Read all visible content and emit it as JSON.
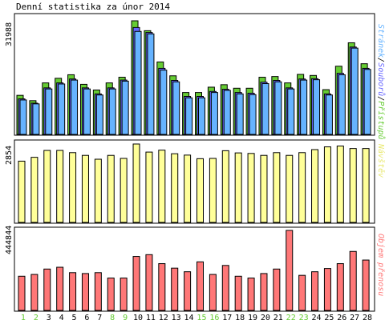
{
  "title": "Denní statistika za únor 2014",
  "colors": {
    "hits": "#66cc33",
    "files": "#6666ff",
    "pages": "#66b3ff",
    "visits": "#ffff99",
    "kbytes": "#ff7777",
    "weekend_day": "#66cc33",
    "weekday": "#000000"
  },
  "chart_data": [
    {
      "type": "bar",
      "title": "",
      "ylabel": "31988",
      "legend_right": [
        "Stránek",
        "Souborů",
        "Přístupů"
      ],
      "categories": [
        "1",
        "2",
        "3",
        "4",
        "5",
        "6",
        "7",
        "8",
        "9",
        "10",
        "11",
        "12",
        "13",
        "14",
        "15",
        "16",
        "17",
        "18",
        "19",
        "20",
        "21",
        "22",
        "23",
        "24",
        "25",
        "26",
        "27",
        "28"
      ],
      "ylim": [
        0,
        31988
      ],
      "series": [
        {
          "name": "Přístupů",
          "values": [
            11000,
            9500,
            14500,
            15800,
            16800,
            14100,
            12500,
            14500,
            16100,
            31988,
            29200,
            20400,
            16500,
            11800,
            11800,
            13300,
            14000,
            13000,
            13000,
            16100,
            16300,
            14500,
            16900,
            16600,
            12600,
            19200,
            25800,
            19900
          ]
        },
        {
          "name": "Souborů",
          "values": [
            10000,
            8800,
            13100,
            14500,
            15600,
            13100,
            11400,
            13100,
            15300,
            30100,
            28700,
            18600,
            15200,
            10700,
            10700,
            12100,
            12700,
            11800,
            11600,
            14700,
            15200,
            13100,
            15600,
            15700,
            11400,
            17200,
            24600,
            18600
          ]
        },
        {
          "name": "Stránek",
          "values": [
            9700,
            8600,
            12800,
            14200,
            15300,
            12800,
            11100,
            12800,
            15000,
            29000,
            28300,
            18100,
            14800,
            10300,
            10300,
            11800,
            12400,
            11400,
            11200,
            14300,
            14800,
            12800,
            15300,
            15400,
            11100,
            16800,
            24300,
            18300
          ]
        }
      ]
    },
    {
      "type": "bar",
      "title": "",
      "ylabel": "2854",
      "legend_right": [
        "Návštěv"
      ],
      "categories": [
        "1",
        "2",
        "3",
        "4",
        "5",
        "6",
        "7",
        "8",
        "9",
        "10",
        "11",
        "12",
        "13",
        "14",
        "15",
        "16",
        "17",
        "18",
        "19",
        "20",
        "21",
        "22",
        "23",
        "24",
        "25",
        "26",
        "27",
        "28"
      ],
      "ylim": [
        0,
        2854
      ],
      "series": [
        {
          "name": "Návštěv",
          "values": [
            2230,
            2370,
            2620,
            2620,
            2540,
            2440,
            2300,
            2440,
            2330,
            2854,
            2560,
            2630,
            2500,
            2450,
            2320,
            2330,
            2610,
            2530,
            2510,
            2440,
            2540,
            2440,
            2540,
            2650,
            2750,
            2780,
            2690,
            2690
          ]
        }
      ]
    },
    {
      "type": "bar",
      "title": "",
      "ylabel": "444844",
      "legend_right": [
        "Objem přenosu"
      ],
      "categories": [
        "1",
        "2",
        "3",
        "4",
        "5",
        "6",
        "7",
        "8",
        "9",
        "10",
        "11",
        "12",
        "13",
        "14",
        "15",
        "16",
        "17",
        "18",
        "19",
        "20",
        "21",
        "22",
        "23",
        "24",
        "25",
        "26",
        "27",
        "28"
      ],
      "ylim": [
        0,
        444844
      ],
      "series": [
        {
          "name": "Objem přenosu",
          "values": [
            190000,
            200000,
            230000,
            240000,
            210000,
            205000,
            210000,
            180000,
            180000,
            300000,
            310000,
            260000,
            235000,
            215000,
            270000,
            200000,
            250000,
            190000,
            180000,
            205000,
            230000,
            444844,
            195000,
            215000,
            233000,
            260000,
            328000,
            280000
          ]
        }
      ]
    }
  ],
  "weekend_days": [
    1,
    2,
    8,
    9,
    15,
    16,
    22,
    23
  ]
}
